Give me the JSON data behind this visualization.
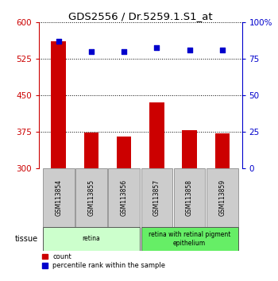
{
  "title": "GDS2556 / Dr.5259.1.S1_at",
  "samples": [
    "GSM113854",
    "GSM113855",
    "GSM113856",
    "GSM113857",
    "GSM113858",
    "GSM113859"
  ],
  "counts": [
    562,
    374,
    366,
    435,
    378,
    372
  ],
  "percentile_ranks": [
    87,
    80,
    80,
    83,
    81,
    81
  ],
  "ylim_left": [
    300,
    600
  ],
  "ylim_right": [
    0,
    100
  ],
  "yticks_left": [
    300,
    375,
    450,
    525,
    600
  ],
  "yticks_right": [
    0,
    25,
    50,
    75,
    100
  ],
  "bar_color": "#cc0000",
  "dot_color": "#0000cc",
  "tissue_groups": [
    {
      "label": "retina",
      "span": [
        0,
        3
      ],
      "color": "#ccffcc"
    },
    {
      "label": "retina with retinal pigment\nepithelium",
      "span": [
        3,
        6
      ],
      "color": "#66ee66"
    }
  ],
  "legend_count_label": "count",
  "legend_pct_label": "percentile rank within the sample",
  "tissue_label": "tissue",
  "background_color": "#ffffff",
  "xtick_bg": "#cccccc",
  "xtick_border": "#999999"
}
